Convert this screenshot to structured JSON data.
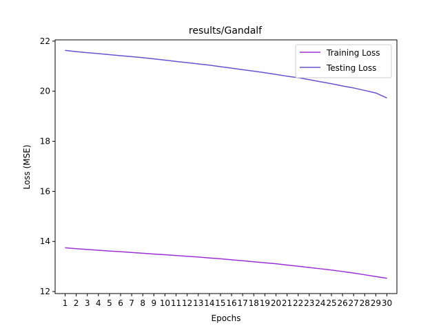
{
  "chart_data": {
    "type": "line",
    "title": "results/Gandalf",
    "xlabel": "Epochs",
    "ylabel": "Loss (MSE)",
    "x": [
      1,
      2,
      3,
      4,
      5,
      6,
      7,
      8,
      9,
      10,
      11,
      12,
      13,
      14,
      15,
      16,
      17,
      18,
      19,
      20,
      21,
      22,
      23,
      24,
      25,
      26,
      27,
      28,
      29,
      30
    ],
    "xlim": [
      0.1,
      30.9
    ],
    "ylim": [
      11.92,
      22.05
    ],
    "yticks": [
      12,
      14,
      16,
      18,
      20,
      22
    ],
    "legend_position": "top-right",
    "grid": false,
    "series": [
      {
        "name": "Training Loss",
        "color": "#9b2fd6",
        "values": [
          13.75,
          13.71,
          13.68,
          13.65,
          13.62,
          13.59,
          13.56,
          13.53,
          13.5,
          13.47,
          13.44,
          13.41,
          13.38,
          13.34,
          13.31,
          13.27,
          13.23,
          13.19,
          13.15,
          13.11,
          13.06,
          13.01,
          12.96,
          12.91,
          12.86,
          12.8,
          12.74,
          12.67,
          12.6,
          12.53
        ]
      },
      {
        "name": "Testing Loss",
        "color": "#6a4fd0",
        "values": [
          21.63,
          21.58,
          21.54,
          21.5,
          21.46,
          21.42,
          21.38,
          21.34,
          21.29,
          21.24,
          21.19,
          21.14,
          21.09,
          21.04,
          20.98,
          20.92,
          20.86,
          20.8,
          20.74,
          20.67,
          20.6,
          20.54,
          20.46,
          20.38,
          20.3,
          20.21,
          20.13,
          20.03,
          19.93,
          19.73
        ]
      }
    ]
  }
}
